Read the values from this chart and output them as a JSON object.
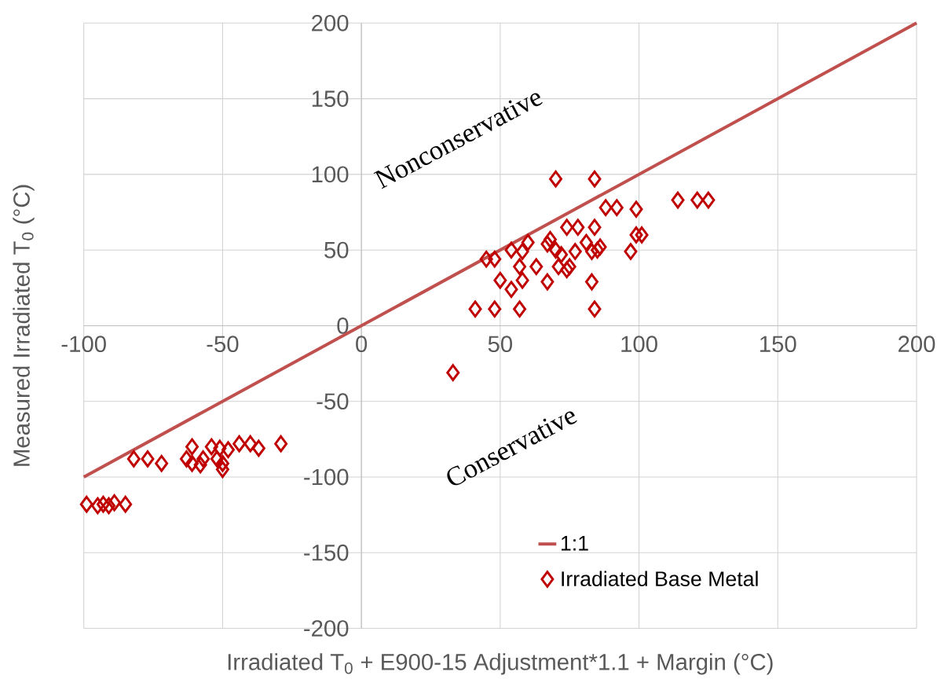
{
  "chart_data": {
    "type": "scatter",
    "xlabel": "Irradiated T$_{0}$ + E900-15 Adjustment*1.1 + Margin (°C)",
    "ylabel": "Measured Irradiated T$_{0}$ (°C)",
    "annotations": [
      "Nonconservative",
      "Conservative"
    ],
    "xlim": [
      -100,
      200
    ],
    "ylim": [
      -200,
      200
    ],
    "xticks": [
      -100,
      -50,
      0,
      50,
      100,
      150,
      200
    ],
    "yticks": [
      -200,
      -150,
      -100,
      -50,
      0,
      50,
      100,
      150,
      200
    ],
    "grid": true,
    "legend": "bottom right",
    "series": [
      {
        "name": "1:1",
        "type": "line",
        "color": "#c0504d",
        "x": [
          -100,
          200
        ],
        "values": [
          -100,
          200
        ]
      },
      {
        "name": "Irradiated Base Metal",
        "marker": "diamond",
        "color": "#c00000",
        "x": [
          33,
          41,
          48,
          57,
          84,
          50,
          54,
          58,
          67,
          83,
          45,
          48,
          54,
          57,
          63,
          71,
          74,
          75,
          58,
          60,
          67,
          68,
          70,
          72,
          74,
          78,
          77,
          81,
          83,
          85,
          84,
          86,
          97,
          70,
          84,
          88,
          92,
          99,
          99,
          101,
          114,
          121,
          125,
          -82,
          -77,
          -72,
          -63,
          -61,
          -61,
          -57,
          -58,
          -54,
          -52,
          -51,
          -50,
          -50,
          -48,
          -44,
          -40,
          -37,
          -29,
          -99,
          -95,
          -93,
          -91,
          -89,
          -85
        ],
        "values": [
          -31,
          11,
          11,
          11,
          11,
          30,
          24,
          30,
          29,
          29,
          44,
          44,
          50,
          39,
          39,
          39,
          37,
          39,
          49,
          55,
          54,
          57,
          50,
          47,
          65,
          65,
          49,
          55,
          49,
          50,
          65,
          52,
          49,
          97,
          97,
          78,
          78,
          77,
          60,
          60,
          83,
          83,
          83,
          -88,
          -88,
          -91,
          -88,
          -91,
          -80,
          -88,
          -92,
          -80,
          -88,
          -81,
          -91,
          -95,
          -82,
          -78,
          -78,
          -81,
          -78,
          -118,
          -119,
          -118,
          -119,
          -117,
          -118
        ]
      }
    ]
  }
}
